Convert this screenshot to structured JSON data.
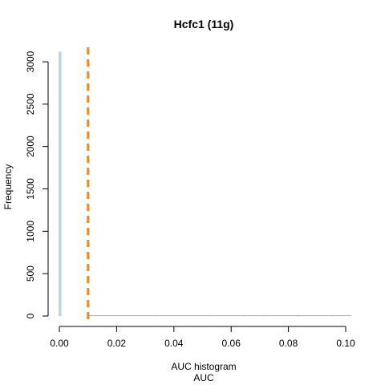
{
  "chart_data": {
    "type": "bar",
    "title": "Hcfc1 (11g)",
    "xlabel": "AUC histogram",
    "xlabel2": "AUC",
    "ylabel": "Frequency",
    "xlim": [
      0.0,
      0.1
    ],
    "ylim": [
      0,
      3000
    ],
    "xticks": [
      0.0,
      0.02,
      0.04,
      0.06,
      0.08,
      0.1
    ],
    "xtick_labels": [
      "0.00",
      "0.02",
      "0.04",
      "0.06",
      "0.08",
      "0.10"
    ],
    "yticks": [
      0,
      500,
      1000,
      1500,
      2000,
      2500,
      3000
    ],
    "ytick_labels": [
      "0",
      "500",
      "1000",
      "1500",
      "2000",
      "2500",
      "3000"
    ],
    "grid": false,
    "bin_width": 0.001,
    "bins": [
      {
        "x": 0.0,
        "count": 3120
      },
      {
        "x": 0.011,
        "count": 6
      },
      {
        "x": 0.016,
        "count": 5
      },
      {
        "x": 0.022,
        "count": 4
      },
      {
        "x": 0.033,
        "count": 3
      },
      {
        "x": 0.045,
        "count": 3
      },
      {
        "x": 0.052,
        "count": 2
      },
      {
        "x": 0.064,
        "count": 2
      },
      {
        "x": 0.071,
        "count": 2
      },
      {
        "x": 0.083,
        "count": 1
      },
      {
        "x": 0.095,
        "count": 1
      }
    ],
    "threshold": 0.01,
    "colors": {
      "bars": "#b9d7ea",
      "threshold": "#f28c1e",
      "baseline": "#9aa7e8"
    }
  }
}
